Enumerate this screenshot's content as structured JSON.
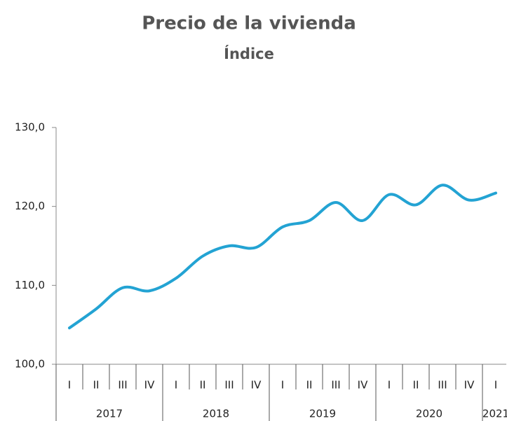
{
  "chart_data": {
    "type": "line",
    "title": "Precio de la vivienda",
    "subtitle": "Índice",
    "groups": [
      {
        "name": "2017",
        "categories": [
          "I",
          "II",
          "III",
          "IV"
        ]
      },
      {
        "name": "2018",
        "categories": [
          "I",
          "II",
          "III",
          "IV"
        ]
      },
      {
        "name": "2019",
        "categories": [
          "I",
          "II",
          "III",
          "IV"
        ]
      },
      {
        "name": "2020",
        "categories": [
          "I",
          "II",
          "III",
          "IV"
        ]
      },
      {
        "name": "2021",
        "categories": [
          "I"
        ]
      }
    ],
    "series": [
      {
        "color": "#23a3d3",
        "values": [
          104.6,
          107.0,
          109.7,
          109.3,
          110.9,
          113.7,
          115.0,
          114.8,
          117.4,
          118.2,
          120.5,
          118.2,
          121.5,
          120.2,
          122.7,
          120.8,
          121.7
        ]
      }
    ],
    "ylim": [
      100,
      130
    ],
    "yticks": [
      {
        "value": 100,
        "label": "100,0"
      },
      {
        "value": 110,
        "label": "110,0"
      },
      {
        "value": 120,
        "label": "120,0"
      },
      {
        "value": 130,
        "label": "130,0"
      }
    ]
  }
}
